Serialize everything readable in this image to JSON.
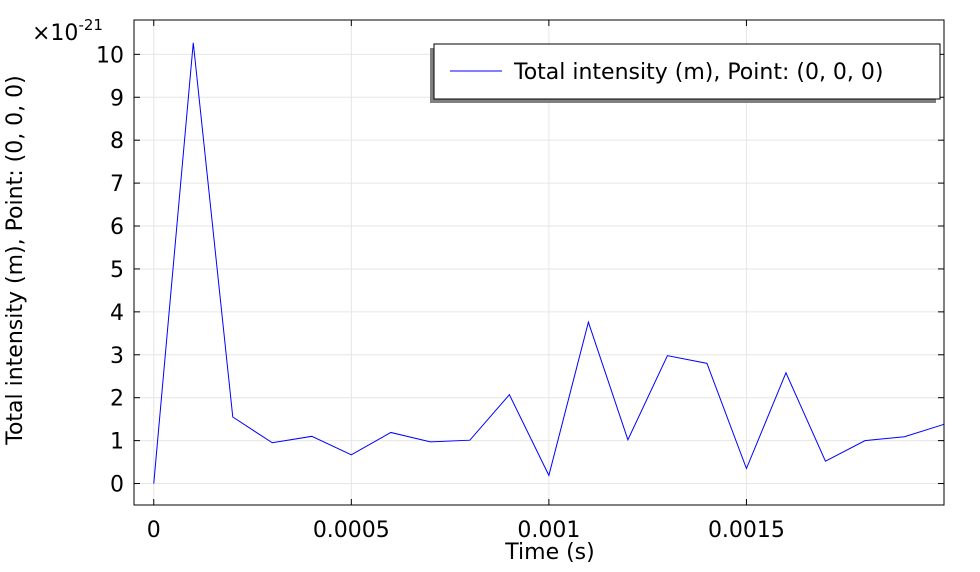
{
  "chart_data": {
    "type": "line",
    "title": "",
    "xlabel": "Time (s)",
    "ylabel": "Total intensity (m), Point: (0, 0, 0)",
    "y_multiplier_base": "×10",
    "y_multiplier_exp": "-21",
    "xlim": [
      -5e-05,
      0.002
    ],
    "ylim": [
      -0.5,
      10.8
    ],
    "grid": true,
    "legend_position": "top-right",
    "x_ticks": [
      {
        "value": 0,
        "label": "0"
      },
      {
        "value": 0.0005,
        "label": "0.0005"
      },
      {
        "value": 0.001,
        "label": "0.001"
      },
      {
        "value": 0.0015,
        "label": "0.0015"
      }
    ],
    "y_ticks": [
      {
        "value": 0,
        "label": "0"
      },
      {
        "value": 1,
        "label": "1"
      },
      {
        "value": 2,
        "label": "2"
      },
      {
        "value": 3,
        "label": "3"
      },
      {
        "value": 4,
        "label": "4"
      },
      {
        "value": 5,
        "label": "5"
      },
      {
        "value": 6,
        "label": "6"
      },
      {
        "value": 7,
        "label": "7"
      },
      {
        "value": 8,
        "label": "8"
      },
      {
        "value": 9,
        "label": "9"
      },
      {
        "value": 10,
        "label": "10"
      }
    ],
    "series": [
      {
        "name": "Total intensity (m), Point: (0, 0, 0)",
        "color": "#0000ff",
        "x": [
          0,
          0.0001,
          0.0002,
          0.0003,
          0.0004,
          0.0005,
          0.0006,
          0.0007,
          0.0008,
          0.0009,
          0.001,
          0.0011,
          0.0012,
          0.0013,
          0.0014,
          0.0015,
          0.0016,
          0.0017,
          0.0018,
          0.0019,
          0.002
        ],
        "y": [
          0,
          10.27,
          1.55,
          0.95,
          1.1,
          0.67,
          1.19,
          0.97,
          1.01,
          2.07,
          0.19,
          3.76,
          1.02,
          2.98,
          2.8,
          0.35,
          2.58,
          0.52,
          1.0,
          1.09,
          1.38
        ]
      }
    ]
  }
}
